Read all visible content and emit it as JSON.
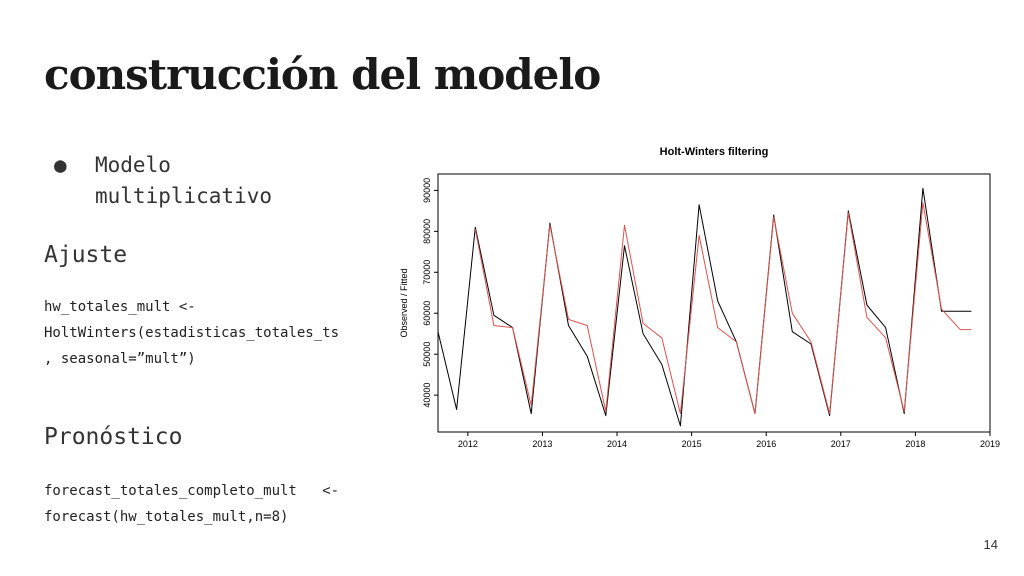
{
  "slide": {
    "title": "construcción del modelo",
    "bullet_symbol": "●",
    "bullet": "Modelo multiplicativo",
    "section_fit": "Ajuste",
    "code_fit_line1": "hw_totales_mult <-",
    "code_fit_line2": "HoltWinters(estadisticas_totales_ts",
    "code_fit_line3": ", seasonal=”mult”)",
    "section_forecast": "Pronóstico",
    "code_fc_line1": "forecast_totales_completo_mult   <-",
    "code_fc_line2": "forecast(hw_totales_mult,n=8)",
    "page_number": "14"
  },
  "chart_data": {
    "type": "line",
    "title": "Holt-Winters filtering",
    "xlabel": "",
    "ylabel": "Observed / Fitted",
    "xlim": [
      2011.6,
      2019.0
    ],
    "ylim": [
      31000,
      94000
    ],
    "xticks": [
      2012,
      2013,
      2014,
      2015,
      2016,
      2017,
      2018,
      2019
    ],
    "yticks": [
      40000,
      50000,
      60000,
      70000,
      80000,
      90000
    ],
    "grid": false,
    "series": [
      {
        "name": "Observed",
        "color": "#000000",
        "x": [
          2011.6,
          2011.85,
          2012.1,
          2012.35,
          2012.6,
          2012.85,
          2013.1,
          2013.35,
          2013.6,
          2013.85,
          2014.1,
          2014.35,
          2014.6,
          2014.85,
          2015.1,
          2015.35,
          2015.6,
          2015.85,
          2016.1,
          2016.35,
          2016.6,
          2016.85,
          2017.1,
          2017.35,
          2017.6,
          2017.85,
          2018.1,
          2018.35,
          2018.6,
          2018.75
        ],
        "y": [
          55500,
          36500,
          81000,
          59500,
          56500,
          35500,
          82000,
          57000,
          49500,
          35000,
          76500,
          55000,
          47500,
          32500,
          86500,
          63000,
          53000,
          35500,
          84000,
          55500,
          52500,
          35000,
          85000,
          62000,
          56500,
          35500,
          90500,
          60500,
          60500,
          60500
        ]
      },
      {
        "name": "Fitted",
        "color": "#d9534f",
        "x": [
          2012.1,
          2012.35,
          2012.6,
          2012.85,
          2013.1,
          2013.35,
          2013.6,
          2013.85,
          2014.1,
          2014.35,
          2014.6,
          2014.85,
          2015.1,
          2015.35,
          2015.6,
          2015.85,
          2016.1,
          2016.35,
          2016.6,
          2016.85,
          2017.1,
          2017.35,
          2017.6,
          2017.85,
          2018.1,
          2018.35,
          2018.6,
          2018.75
        ],
        "y": [
          80500,
          57000,
          56500,
          37500,
          81500,
          58500,
          57000,
          36000,
          81500,
          57500,
          54000,
          35500,
          79000,
          56500,
          53000,
          35500,
          83500,
          60000,
          53000,
          35500,
          84500,
          59000,
          54000,
          36000,
          87000,
          61000,
          56000,
          56000
        ]
      }
    ]
  }
}
